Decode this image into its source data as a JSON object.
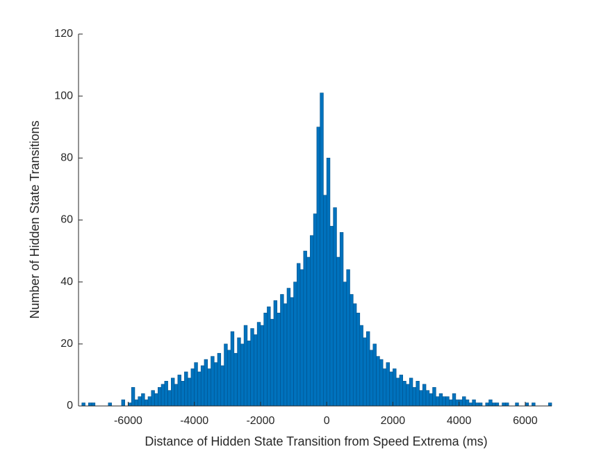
{
  "chart_data": {
    "type": "histogram",
    "xlabel": "Distance of Hidden State Transition from Speed Extrema (ms)",
    "ylabel": "Number of Hidden State Transitions",
    "color": "#0072BD",
    "xlim": [
      -7500,
      6800
    ],
    "ylim": [
      0,
      120
    ],
    "xticks": [
      -6000,
      -4000,
      -2000,
      0,
      2000,
      4000,
      6000
    ],
    "yticks": [
      0,
      20,
      40,
      60,
      80,
      100,
      120
    ],
    "bins": [
      -7400,
      -7300,
      -7200,
      -7100,
      -7000,
      -6900,
      -6800,
      -6700,
      -6600,
      -6500,
      -6400,
      -6300,
      -6200,
      -6100,
      -6000,
      -5900,
      -5800,
      -5700,
      -5600,
      -5500,
      -5400,
      -5300,
      -5200,
      -5100,
      -5000,
      -4900,
      -4800,
      -4700,
      -4600,
      -4500,
      -4400,
      -4300,
      -4200,
      -4100,
      -4000,
      -3900,
      -3800,
      -3700,
      -3600,
      -3500,
      -3400,
      -3300,
      -3200,
      -3100,
      -3000,
      -2900,
      -2800,
      -2700,
      -2600,
      -2500,
      -2400,
      -2300,
      -2200,
      -2100,
      -2000,
      -1900,
      -1800,
      -1700,
      -1600,
      -1500,
      -1400,
      -1300,
      -1200,
      -1100,
      -1000,
      -900,
      -800,
      -700,
      -600,
      -500,
      -400,
      -300,
      -200,
      -100,
      0,
      100,
      200,
      300,
      400,
      500,
      600,
      700,
      800,
      900,
      1000,
      1100,
      1200,
      1300,
      1400,
      1500,
      1600,
      1700,
      1800,
      1900,
      2000,
      2100,
      2200,
      2300,
      2400,
      2500,
      2600,
      2700,
      2800,
      2900,
      3000,
      3100,
      3200,
      3300,
      3400,
      3500,
      3600,
      3700,
      3800,
      3900,
      4000,
      4100,
      4200,
      4300,
      4400,
      4500,
      4600,
      4700,
      4800,
      4900,
      5000,
      5100,
      5200,
      5300,
      5400,
      5500,
      5600,
      5700,
      5800,
      5900,
      6000,
      6100,
      6200,
      6300,
      6400,
      6500,
      6600,
      6700,
      6800
    ],
    "values": [
      1,
      0,
      1,
      1,
      0,
      0,
      0,
      0,
      1,
      0,
      0,
      0,
      2,
      0,
      1,
      6,
      2,
      3,
      4,
      2,
      3,
      5,
      4,
      6,
      7,
      8,
      5,
      9,
      7,
      10,
      8,
      11,
      9,
      12,
      14,
      11,
      13,
      15,
      12,
      16,
      14,
      17,
      13,
      20,
      18,
      24,
      17,
      22,
      20,
      26,
      21,
      25,
      23,
      27,
      26,
      30,
      32,
      28,
      34,
      30,
      36,
      33,
      38,
      35,
      40,
      46,
      44,
      50,
      48,
      55,
      62,
      90,
      101,
      68,
      80,
      58,
      64,
      48,
      56,
      40,
      44,
      36,
      33,
      30,
      26,
      22,
      24,
      18,
      20,
      16,
      15,
      12,
      14,
      11,
      12,
      9,
      10,
      8,
      7,
      9,
      6,
      8,
      5,
      7,
      5,
      4,
      6,
      3,
      4,
      3,
      3,
      2,
      4,
      2,
      2,
      3,
      2,
      1,
      2,
      1,
      1,
      0,
      1,
      2,
      1,
      1,
      0,
      1,
      1,
      0,
      0,
      1,
      0,
      0,
      1,
      0,
      1,
      0,
      0,
      0,
      0,
      1
    ]
  }
}
